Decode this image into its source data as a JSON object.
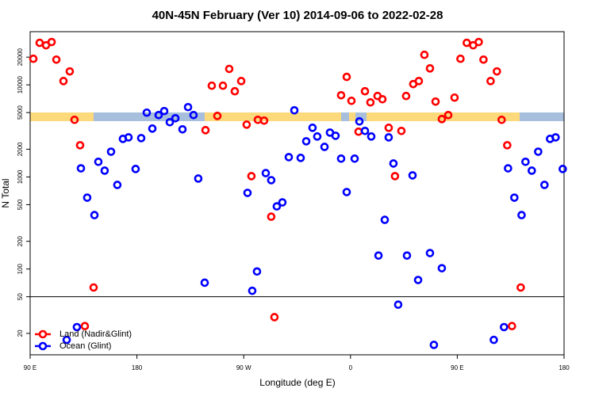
{
  "chart_data": {
    "type": "scatter",
    "title": "40N-45N February (Ver 10)   2014-09-06 to 2022-02-28",
    "x_label": "Longitude (deg E)",
    "y_label": "N Total",
    "log_y": true,
    "xlim": [
      90,
      540
    ],
    "ylim": [
      11.7,
      37800
    ],
    "xticks": [
      {
        "value": 90,
        "label": "90 E"
      },
      180,
      {
        "value": 270,
        "label": "90 W"
      },
      {
        "value": 360,
        "label": "0"
      },
      {
        "value": 450,
        "label": "90 E"
      },
      {
        "value": 540,
        "label": "180"
      }
    ],
    "yticks": [
      20,
      50,
      100,
      200,
      500,
      1000,
      2000,
      5000,
      10000,
      20000
    ],
    "hline": 50,
    "legend": "lower left",
    "series": [
      {
        "name": "Land (Nadir&Glint)",
        "color": "#ff0000",
        "x": [
          92.7,
          98.0,
          103.4,
          108.1,
          112.1,
          118.1,
          123.4,
          127.4,
          132.1,
          136.1,
          143.5,
          237.8,
          243.1,
          247.8,
          252.5,
          257.8,
          262.5,
          267.9,
          272.5,
          276.5,
          281.9,
          287.2,
          293.2,
          295.9,
          352.1,
          356.8,
          360.8,
          366.8,
          372.2,
          376.8,
          382.8,
          386.9,
          392.2,
          397.5,
          402.9,
          406.9,
          412.9,
          417.6,
          422.3,
          427.0,
          431.7,
          437.0,
          442.4,
          447.7,
          452.7,
          458.0,
          463.4,
          468.1,
          472.1,
          478.1,
          483.4,
          487.4,
          492.1,
          496.1,
          503.5
        ],
        "values": [
          19200,
          28600,
          26900,
          29200,
          18800,
          11000,
          14000,
          4170,
          2210,
          24,
          63,
          3220,
          9790,
          4600,
          9790,
          14900,
          8520,
          11000,
          3700,
          1020,
          4170,
          4090,
          370,
          30,
          7710,
          12200,
          6710,
          3100,
          8520,
          6450,
          7570,
          6980,
          3420,
          1020,
          3160,
          7570,
          10200,
          11000,
          21200,
          15100,
          6580,
          4250,
          4700,
          7270,
          19200,
          28600,
          26900,
          29200,
          18800,
          11000,
          14000,
          4170,
          2210,
          24,
          63
        ]
      },
      {
        "name": "Ocean (Glint)",
        "color": "#0000ff",
        "x": [
          120.8,
          129.4,
          132.8,
          138.1,
          144.2,
          147.5,
          152.8,
          158.2,
          163.5,
          168.2,
          172.9,
          178.9,
          183.6,
          188.3,
          193.0,
          198.3,
          203.0,
          207.7,
          212.4,
          218.4,
          223.1,
          227.7,
          231.7,
          237.1,
          273.2,
          277.2,
          281.2,
          288.6,
          293.2,
          297.9,
          302.6,
          308.0,
          312.7,
          318.0,
          322.7,
          328.0,
          332.0,
          338.1,
          342.7,
          347.4,
          352.1,
          356.8,
          363.5,
          367.5,
          372.2,
          377.5,
          383.6,
          388.9,
          392.2,
          396.2,
          400.2,
          407.6,
          412.3,
          417.0,
          427.0,
          430.3,
          437.0,
          480.8,
          489.4,
          492.8,
          498.1,
          504.2,
          507.5,
          512.8,
          518.2,
          523.5,
          528.2,
          532.9,
          538.9
        ],
        "values": [
          17,
          23.4,
          1240,
          596,
          385,
          1460,
          1170,
          1880,
          819,
          2590,
          2690,
          1220,
          2640,
          4990,
          3350,
          4700,
          5190,
          3930,
          4340,
          3290,
          5730,
          4700,
          960,
          71,
          671,
          58,
          94,
          1100,
          922,
          479,
          529,
          1640,
          5290,
          1610,
          2440,
          3420,
          2750,
          2120,
          3030,
          2800,
          1580,
          685,
          1580,
          4010,
          3160,
          2750,
          140,
          342,
          2690,
          1400,
          41,
          140,
          1040,
          76,
          149,
          15,
          102,
          17,
          23.4,
          1240,
          596,
          385,
          1460,
          1170,
          1880,
          819,
          2590,
          2690,
          1220
        ]
      }
    ]
  }
}
